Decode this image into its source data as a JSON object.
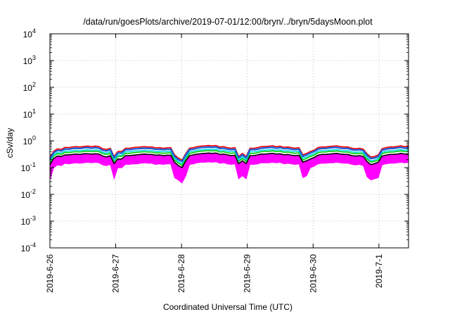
{
  "chart_data": {
    "type": "line",
    "title": "/data/run/goesPlots/archive/2019-07-01/12:00/bryn/../bryn/5daysMoon.plot",
    "xlabel": "Coordinated Universal Time (UTC)",
    "ylabel": "cSv/day",
    "y_scale": "log",
    "ylim": [
      0.0001,
      10000
    ],
    "y_ticks": [
      {
        "value": 0.0001,
        "base": "10",
        "exp": "-4"
      },
      {
        "value": 0.001,
        "base": "10",
        "exp": "-3"
      },
      {
        "value": 0.01,
        "base": "10",
        "exp": "-2"
      },
      {
        "value": 0.1,
        "base": "10",
        "exp": "-1"
      },
      {
        "value": 1,
        "base": "10",
        "exp": "0"
      },
      {
        "value": 10,
        "base": "10",
        "exp": "1"
      },
      {
        "value": 100,
        "base": "10",
        "exp": "2"
      },
      {
        "value": 1000,
        "base": "10",
        "exp": "3"
      },
      {
        "value": 10000,
        "base": "10",
        "exp": "4"
      }
    ],
    "x_ticks": [
      "2019-6-26",
      "2019-6-27",
      "2019-6-28",
      "2019-6-29",
      "2019-6-30",
      "2019-7-1"
    ],
    "x_start": "2019-6-26",
    "xlim_days": [
      0,
      5.45
    ],
    "grid": true,
    "legend": "none",
    "series": [
      {
        "color": "#ff00ff",
        "band": true,
        "values": [
          0.09,
          0.15,
          0.19,
          0.18,
          0.22,
          0.21,
          0.22,
          0.23,
          0.22,
          0.23,
          0.24,
          0.23,
          0.24,
          0.23,
          0.19,
          0.18,
          0.2,
          0.1,
          0.15,
          0.15,
          0.2,
          0.2,
          0.21,
          0.21,
          0.22,
          0.23,
          0.22,
          0.22,
          0.2,
          0.21,
          0.2,
          0.21,
          0.21,
          0.11,
          0.09,
          0.07,
          0.13,
          0.2,
          0.21,
          0.23,
          0.24,
          0.24,
          0.25,
          0.24,
          0.25,
          0.22,
          0.23,
          0.21,
          0.2,
          0.21,
          0.1,
          0.13,
          0.1,
          0.2,
          0.2,
          0.21,
          0.23,
          0.23,
          0.23,
          0.24,
          0.23,
          0.24,
          0.21,
          0.22,
          0.21,
          0.2,
          0.21,
          0.11,
          0.13,
          0.15,
          0.17,
          0.21,
          0.22,
          0.22,
          0.23,
          0.23,
          0.24,
          0.23,
          0.22,
          0.22,
          0.2,
          0.19,
          0.2,
          0.18,
          0.12,
          0.09,
          0.1,
          0.11,
          0.19,
          0.21,
          0.22,
          0.22,
          0.23,
          0.24,
          0.23,
          0.24
        ]
      },
      {
        "color": "#000000",
        "values": [
          0.13,
          0.22,
          0.27,
          0.26,
          0.3,
          0.3,
          0.31,
          0.32,
          0.31,
          0.33,
          0.33,
          0.32,
          0.33,
          0.32,
          0.27,
          0.25,
          0.28,
          0.14,
          0.21,
          0.21,
          0.28,
          0.28,
          0.29,
          0.3,
          0.31,
          0.32,
          0.31,
          0.31,
          0.29,
          0.3,
          0.28,
          0.29,
          0.29,
          0.16,
          0.12,
          0.1,
          0.18,
          0.28,
          0.3,
          0.32,
          0.33,
          0.34,
          0.35,
          0.34,
          0.35,
          0.31,
          0.32,
          0.3,
          0.28,
          0.29,
          0.14,
          0.18,
          0.14,
          0.28,
          0.28,
          0.3,
          0.32,
          0.32,
          0.33,
          0.34,
          0.32,
          0.33,
          0.3,
          0.31,
          0.29,
          0.28,
          0.29,
          0.16,
          0.18,
          0.21,
          0.24,
          0.29,
          0.31,
          0.31,
          0.32,
          0.33,
          0.34,
          0.32,
          0.31,
          0.31,
          0.28,
          0.27,
          0.28,
          0.26,
          0.17,
          0.13,
          0.14,
          0.16,
          0.27,
          0.29,
          0.31,
          0.31,
          0.32,
          0.34,
          0.32,
          0.33
        ]
      },
      {
        "color": "#00cc00",
        "values": [
          0.16,
          0.27,
          0.33,
          0.31,
          0.37,
          0.36,
          0.38,
          0.39,
          0.38,
          0.4,
          0.41,
          0.39,
          0.41,
          0.39,
          0.33,
          0.31,
          0.34,
          0.17,
          0.26,
          0.26,
          0.34,
          0.34,
          0.36,
          0.37,
          0.38,
          0.39,
          0.38,
          0.38,
          0.35,
          0.36,
          0.34,
          0.35,
          0.36,
          0.19,
          0.15,
          0.12,
          0.22,
          0.34,
          0.36,
          0.39,
          0.41,
          0.42,
          0.43,
          0.42,
          0.43,
          0.38,
          0.39,
          0.36,
          0.34,
          0.36,
          0.17,
          0.22,
          0.17,
          0.34,
          0.34,
          0.36,
          0.39,
          0.4,
          0.4,
          0.42,
          0.39,
          0.41,
          0.37,
          0.38,
          0.36,
          0.34,
          0.36,
          0.19,
          0.22,
          0.26,
          0.29,
          0.36,
          0.38,
          0.38,
          0.4,
          0.4,
          0.42,
          0.39,
          0.38,
          0.38,
          0.34,
          0.33,
          0.34,
          0.32,
          0.21,
          0.16,
          0.17,
          0.19,
          0.33,
          0.36,
          0.38,
          0.38,
          0.4,
          0.42,
          0.39,
          0.4
        ]
      },
      {
        "color": "#00e0e0",
        "values": [
          0.18,
          0.3,
          0.37,
          0.35,
          0.42,
          0.41,
          0.43,
          0.44,
          0.43,
          0.45,
          0.46,
          0.44,
          0.46,
          0.44,
          0.37,
          0.35,
          0.39,
          0.19,
          0.29,
          0.29,
          0.39,
          0.39,
          0.41,
          0.42,
          0.43,
          0.44,
          0.43,
          0.43,
          0.4,
          0.41,
          0.39,
          0.4,
          0.41,
          0.22,
          0.17,
          0.14,
          0.25,
          0.39,
          0.41,
          0.44,
          0.46,
          0.47,
          0.49,
          0.47,
          0.49,
          0.43,
          0.44,
          0.41,
          0.39,
          0.41,
          0.19,
          0.25,
          0.19,
          0.39,
          0.39,
          0.41,
          0.44,
          0.45,
          0.46,
          0.47,
          0.44,
          0.46,
          0.42,
          0.43,
          0.41,
          0.39,
          0.41,
          0.22,
          0.25,
          0.29,
          0.33,
          0.41,
          0.43,
          0.43,
          0.45,
          0.46,
          0.47,
          0.44,
          0.43,
          0.43,
          0.39,
          0.37,
          0.39,
          0.36,
          0.24,
          0.18,
          0.19,
          0.22,
          0.37,
          0.41,
          0.43,
          0.43,
          0.45,
          0.47,
          0.44,
          0.46
        ]
      },
      {
        "color": "#ff0000",
        "values": [
          0.24,
          0.41,
          0.5,
          0.48,
          0.57,
          0.56,
          0.59,
          0.61,
          0.59,
          0.62,
          0.64,
          0.61,
          0.64,
          0.61,
          0.5,
          0.48,
          0.53,
          0.26,
          0.4,
          0.4,
          0.53,
          0.53,
          0.56,
          0.58,
          0.59,
          0.61,
          0.59,
          0.59,
          0.55,
          0.56,
          0.53,
          0.55,
          0.56,
          0.3,
          0.23,
          0.19,
          0.34,
          0.53,
          0.56,
          0.61,
          0.64,
          0.65,
          0.67,
          0.65,
          0.67,
          0.59,
          0.61,
          0.56,
          0.53,
          0.56,
          0.26,
          0.34,
          0.26,
          0.53,
          0.53,
          0.56,
          0.61,
          0.62,
          0.63,
          0.65,
          0.61,
          0.63,
          0.58,
          0.59,
          0.56,
          0.53,
          0.56,
          0.3,
          0.34,
          0.4,
          0.45,
          0.56,
          0.59,
          0.59,
          0.62,
          0.63,
          0.65,
          0.61,
          0.59,
          0.59,
          0.53,
          0.51,
          0.53,
          0.49,
          0.33,
          0.25,
          0.26,
          0.3,
          0.51,
          0.56,
          0.59,
          0.59,
          0.62,
          0.65,
          0.61,
          0.63
        ]
      },
      {
        "color": "#1f5fd6",
        "values": [
          0.21,
          0.36,
          0.44,
          0.42,
          0.5,
          0.49,
          0.52,
          0.53,
          0.52,
          0.55,
          0.56,
          0.53,
          0.56,
          0.53,
          0.44,
          0.42,
          0.47,
          0.23,
          0.35,
          0.35,
          0.47,
          0.47,
          0.49,
          0.51,
          0.52,
          0.53,
          0.52,
          0.52,
          0.48,
          0.49,
          0.47,
          0.48,
          0.49,
          0.26,
          0.2,
          0.17,
          0.3,
          0.47,
          0.49,
          0.53,
          0.56,
          0.57,
          0.59,
          0.57,
          0.59,
          0.52,
          0.53,
          0.49,
          0.47,
          0.49,
          0.23,
          0.3,
          0.23,
          0.47,
          0.47,
          0.49,
          0.53,
          0.55,
          0.56,
          0.57,
          0.53,
          0.56,
          0.51,
          0.52,
          0.49,
          0.47,
          0.49,
          0.26,
          0.3,
          0.35,
          0.4,
          0.49,
          0.52,
          0.52,
          0.55,
          0.56,
          0.57,
          0.53,
          0.52,
          0.52,
          0.47,
          0.45,
          0.47,
          0.43,
          0.29,
          0.22,
          0.23,
          0.26,
          0.45,
          0.49,
          0.52,
          0.52,
          0.55,
          0.57,
          0.53,
          0.56
        ]
      }
    ]
  }
}
